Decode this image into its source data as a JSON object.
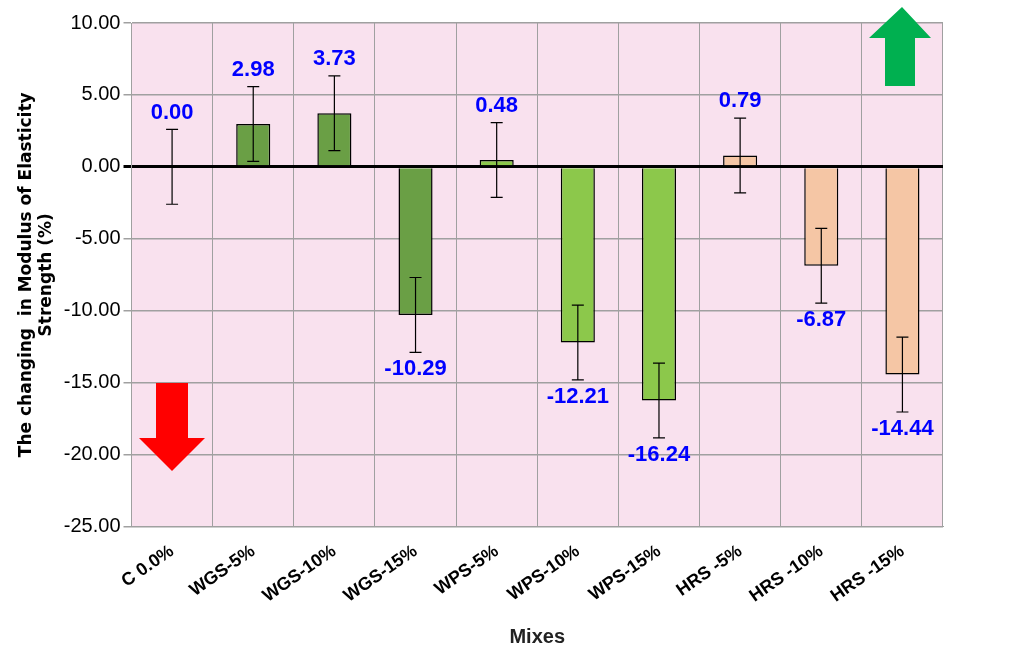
{
  "chart_data": {
    "type": "bar",
    "xlabel": "Mixes",
    "ylabel": "The changing  in Modulus of Elasticity Strength (%)",
    "categories": [
      "C 0.0%",
      "WGS-5%",
      "WGS-10%",
      "WGS-15%",
      "WPS-5%",
      "WPS-10%",
      "WPS-15%",
      "HRS -5%",
      "HRS -10%",
      "HRS -15%"
    ],
    "values": [
      0.0,
      2.98,
      3.73,
      -10.29,
      0.48,
      -12.21,
      -16.24,
      0.79,
      -6.87,
      -14.44
    ],
    "colors": [
      "#6a9f45",
      "#6a9f45",
      "#6a9f45",
      "#6a9f45",
      "#8cc84b",
      "#8cc84b",
      "#8cc84b",
      "#f5c6a5",
      "#f5c6a5",
      "#f5c6a5"
    ],
    "errors": [
      2.6,
      2.6,
      2.6,
      2.6,
      2.6,
      2.6,
      2.6,
      2.6,
      2.6,
      2.6
    ],
    "value_labels": [
      "0.00",
      "2.98",
      "3.73",
      "-10.29",
      "0.48",
      "-12.21",
      "-16.24",
      "0.79",
      "-6.87",
      "-14.44"
    ],
    "ylim": [
      -25,
      10
    ],
    "yticks": [
      {
        "value": -25,
        "label": "-25.00"
      },
      {
        "value": -20,
        "label": "-20.00"
      },
      {
        "value": -15,
        "label": "-15.00"
      },
      {
        "value": -10,
        "label": "-10.00"
      },
      {
        "value": -5,
        "label": "-5.00"
      },
      {
        "value": 0,
        "label": "0.00"
      },
      {
        "value": 5,
        "label": "5.00"
      },
      {
        "value": 10,
        "label": "10.00"
      }
    ],
    "grid": true,
    "legend": false
  }
}
